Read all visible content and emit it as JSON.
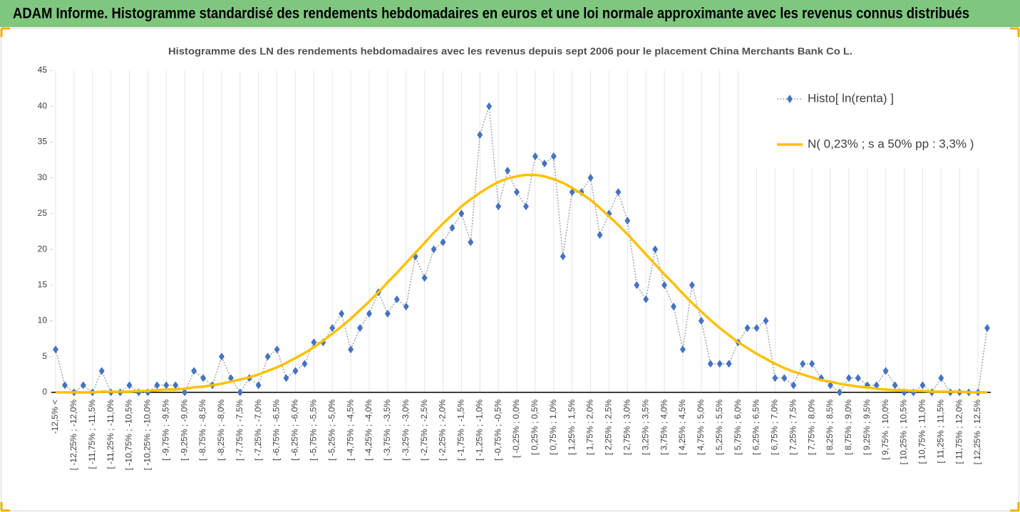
{
  "chart_data": {
    "type": "line",
    "banner": "ADAM Informe. Histogramme standardisé des rendements hebdomadaires en euros et une loi normale approximante avec les revenus connus distribués",
    "title": "Histogramme des LN des rendements hebdomadaires avec les revenus depuis sept 2006 pour le placement China Merchants Bank Co L.",
    "categories": [
      "-12,5% <",
      null,
      "[ -12,25% ; -12,0%",
      null,
      "[ -11,75% ; -11,5%",
      null,
      "[ -11,25% ; -11,0%",
      null,
      "[ -10,75% ; -10,5%",
      null,
      "[ -10,25% ; -10,0%",
      null,
      "[ -9,75% ; -9,5%",
      null,
      "[ -9,25% ; -9,0%",
      null,
      "[ -8,75% ; -8,5%",
      null,
      "[ -8,25% ; -8,0%",
      null,
      "[ -7,75% ; -7,5%",
      null,
      "[ -7,25% ; -7,0%",
      null,
      "[ -6,75% ; -6,5%",
      null,
      "[ -6,25% ; -6,0%",
      null,
      "[ -5,75% ; -5,5%",
      null,
      "[ -5,25% ; -5,0%",
      null,
      "[ -4,75% ; -4,5%",
      null,
      "[ -4,25% ; -4,0%",
      null,
      "[ -3,75% ; -3,5%",
      null,
      "[ -3,25% ; -3,0%",
      null,
      "[ -2,75% ; -2,5%",
      null,
      "[ -2,25% ; -2,0%",
      null,
      "[ -1,75% ; -1,5%",
      null,
      "[ -1,25% ; -1,0%",
      null,
      "[ -0,75% ; -0,5%",
      null,
      "[ -0,25% ; 0,0%",
      null,
      "[ 0,25% ; 0,5%",
      null,
      "[ 0,75% ; 1,0%",
      null,
      "[ 1,25% ; 1,5%",
      null,
      "[ 1,75% ; 2,0%",
      null,
      "[ 2,25% ; 2,5%",
      null,
      "[ 2,75% ; 3,0%",
      null,
      "[ 3,25% ; 3,5%",
      null,
      "[ 3,75% ; 4,0%",
      null,
      "[ 4,25% ; 4,5%",
      null,
      "[ 4,75% ; 5,0%",
      null,
      "[ 5,25% ; 5,5%",
      null,
      "[ 5,75% ; 6,0%",
      null,
      "[ 6,25% ; 6,5%",
      null,
      "[ 6,75% ; 7,0%",
      null,
      "[ 7,25% ; 7,5%",
      null,
      "[ 7,75% ; 8,0%",
      null,
      "[ 8,25% ; 8,5%",
      null,
      "[ 8,75% ; 9,0%",
      null,
      "[ 9,25% ; 9,5%",
      null,
      "[ 9,75% ; 10,0%",
      null,
      "[ 10,25% ; 10,5%",
      null,
      "[ 10,75% ; 11,0%",
      null,
      "[ 11,25% ; 11,5%",
      null,
      "[ 11,75% ; 12,0%",
      null,
      "[ 12,25% ; 12,5%",
      null
    ],
    "series": [
      {
        "name": "Histo[ ln(renta) ]",
        "color": "#4472c4",
        "values": [
          6,
          1,
          0,
          1,
          0,
          3,
          0,
          0,
          1,
          0,
          0,
          1,
          1,
          1,
          0,
          3,
          2,
          1,
          5,
          2,
          0,
          2,
          1,
          5,
          6,
          2,
          3,
          4,
          7,
          7,
          9,
          11,
          6,
          9,
          11,
          14,
          11,
          13,
          12,
          19,
          16,
          20,
          21,
          23,
          25,
          21,
          36,
          40,
          26,
          31,
          28,
          26,
          33,
          32,
          33,
          19,
          28,
          28,
          30,
          22,
          25,
          28,
          24,
          15,
          13,
          20,
          15,
          12,
          6,
          15,
          10,
          4,
          4,
          4,
          7,
          9,
          9,
          10,
          2,
          2,
          1,
          4,
          4,
          2,
          1,
          0,
          2,
          2,
          1,
          1,
          3,
          1,
          0,
          0,
          1,
          0,
          2,
          0,
          0,
          0,
          0,
          9
        ]
      },
      {
        "name": "N( 0,23% ; s a 50% pp : 3,3% )",
        "color": "#ffc000",
        "values": [
          0.0,
          0.0,
          0.0,
          0.0,
          0.0,
          0.1,
          0.1,
          0.1,
          0.1,
          0.2,
          0.2,
          0.3,
          0.4,
          0.4,
          0.5,
          0.7,
          0.8,
          1.0,
          1.2,
          1.5,
          1.8,
          2.1,
          2.5,
          3.0,
          3.5,
          4.1,
          4.8,
          5.5,
          6.3,
          7.2,
          8.2,
          9.2,
          10.3,
          11.5,
          12.7,
          14.0,
          15.4,
          16.7,
          18.1,
          19.5,
          20.9,
          22.3,
          23.6,
          24.8,
          26.0,
          27.0,
          27.9,
          28.7,
          29.4,
          29.9,
          30.2,
          30.4,
          30.4,
          30.2,
          29.8,
          29.3,
          28.6,
          27.8,
          26.9,
          25.8,
          24.6,
          23.4,
          22.1,
          20.7,
          19.3,
          17.9,
          16.5,
          15.2,
          13.8,
          12.5,
          11.3,
          10.1,
          9.0,
          8.0,
          7.0,
          6.2,
          5.4,
          4.7,
          4.0,
          3.4,
          2.9,
          2.5,
          2.1,
          1.7,
          1.5,
          1.2,
          1.0,
          0.8,
          0.7,
          0.5,
          0.4,
          0.3,
          0.3,
          0.2,
          0.2,
          0.1,
          0.1,
          0.1,
          0.1,
          0.0,
          0.0,
          0.0
        ]
      }
    ],
    "ylim": [
      0,
      45
    ],
    "yticks": [
      0,
      5,
      10,
      15,
      20,
      25,
      30,
      35,
      40,
      45
    ],
    "grid": true
  }
}
